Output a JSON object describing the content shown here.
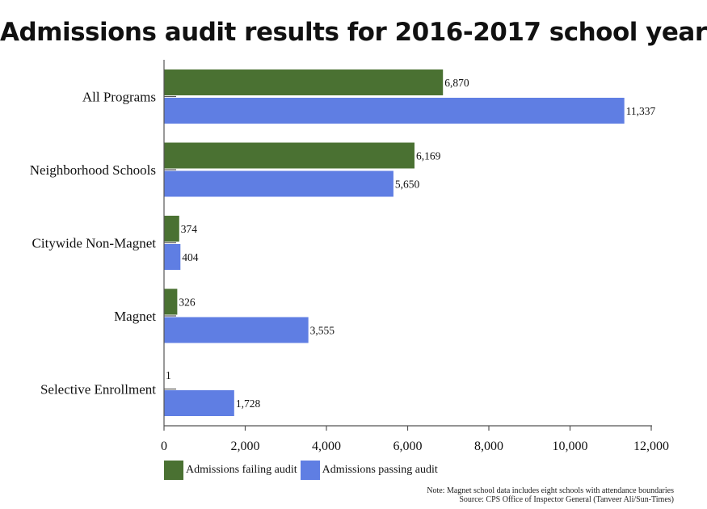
{
  "title": "Admissions audit results for 2016-2017 school year",
  "colors": {
    "failing": "#4a7132",
    "passing": "#5f7ee3",
    "axis": "#555555"
  },
  "legend": {
    "failing": "Admissions failing audit",
    "passing": "Admissions passing audit"
  },
  "note": "Note: Magnet school data includes eight schools with attendance boundaries",
  "source": "Source: CPS Office of Inspector General (Tanveer Ali/Sun-Times)",
  "chart_data": {
    "type": "bar",
    "orientation": "horizontal",
    "categories": [
      "All Programs",
      "Neighborhood Schools",
      "Citywide Non-Magnet",
      "Magnet",
      "Selective Enrollment"
    ],
    "series": [
      {
        "name": "Admissions failing audit",
        "values": [
          6870,
          6169,
          374,
          326,
          1
        ],
        "labels": [
          "6,870",
          "6,169",
          "374",
          "326",
          "1"
        ]
      },
      {
        "name": "Admissions passing audit",
        "values": [
          11337,
          5650,
          404,
          3555,
          1728
        ],
        "labels": [
          "11,337",
          "5,650",
          "404",
          "3,555",
          "1,728"
        ]
      }
    ],
    "xlim": [
      0,
      12000
    ],
    "xticks": [
      0,
      2000,
      4000,
      6000,
      8000,
      10000,
      12000
    ],
    "xtick_labels": [
      "0",
      "2,000",
      "4,000",
      "6,000",
      "8,000",
      "10,000",
      "12,000"
    ],
    "grid": false,
    "legend_position": "bottom-left"
  }
}
